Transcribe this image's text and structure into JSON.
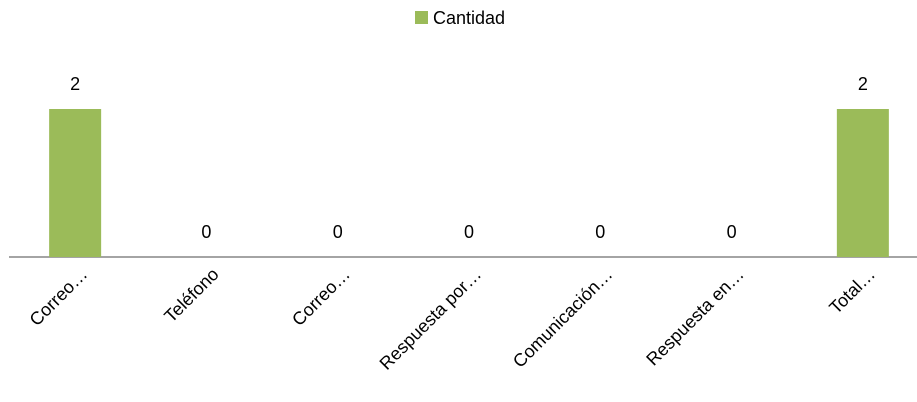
{
  "chart_data": {
    "type": "bar",
    "categories": [
      "Correo…",
      "Teléfono",
      "Correo…",
      "Respuesta por…",
      "Comunicación…",
      "Respuesta en…",
      "Total…"
    ],
    "series": [
      {
        "name": "Cantidad",
        "color": "#9bbb59",
        "values": [
          2,
          0,
          0,
          0,
          0,
          0,
          2
        ]
      }
    ],
    "ylim": [
      0,
      2
    ],
    "legend": "top"
  }
}
